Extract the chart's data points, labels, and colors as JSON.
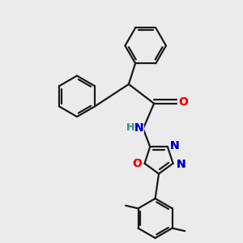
{
  "background_color": "#ebebeb",
  "bond_color": "#1a1a1a",
  "atom_colors": {
    "O": "#ff0000",
    "N": "#0000cc",
    "H": "#4a9090",
    "C": "#1a1a1a"
  }
}
